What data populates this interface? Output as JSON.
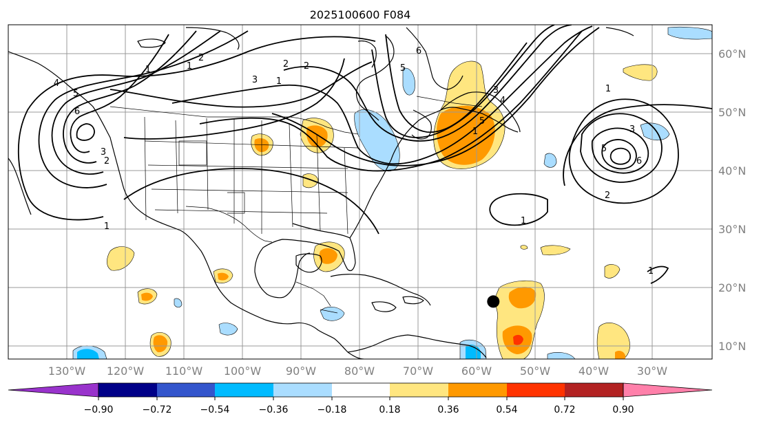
{
  "title": "2025100600 F084",
  "map": {
    "lon_labels": [
      "130°W",
      "120°W",
      "110°W",
      "100°W",
      "90°W",
      "80°W",
      "70°W",
      "60°W",
      "50°W",
      "40°W",
      "30°W"
    ],
    "lat_labels": [
      "60°N",
      "50°N",
      "40°N",
      "30°N",
      "20°N",
      "10°N"
    ],
    "lon_values": [
      -130,
      -120,
      -110,
      -100,
      -90,
      -80,
      -70,
      -60,
      -50,
      -40,
      -30
    ],
    "lat_values": [
      60,
      50,
      40,
      30,
      20,
      10
    ],
    "lon_range": [
      -140,
      -20
    ],
    "lat_range": [
      8,
      65
    ],
    "grid": true,
    "contour_labels": [
      "1",
      "2",
      "3",
      "4",
      "5",
      "6",
      "1",
      "2",
      "3",
      "1",
      "2",
      "5",
      "6",
      "1",
      "2",
      "3",
      "4",
      "5",
      "1",
      "2",
      "3",
      "5",
      "6",
      "1",
      "1",
      "1"
    ],
    "marker": {
      "lon": -57.3,
      "lat": 17.8
    },
    "colors": {
      "coast": "#000000",
      "grid": "#999999",
      "tick_label": "#808080",
      "contour": "#000000"
    }
  },
  "colorbar": {
    "labels": [
      "−0.90",
      "−0.72",
      "−0.54",
      "−0.36",
      "−0.18",
      "0.18",
      "0.36",
      "0.54",
      "0.72",
      "0.90"
    ],
    "colors": [
      "#9933cc",
      "#000088",
      "#3355cc",
      "#00bbff",
      "#aaddff",
      "#ffffff",
      "#ffe680",
      "#ff9900",
      "#ff3300",
      "#b22222",
      "#ff80aa"
    ]
  }
}
